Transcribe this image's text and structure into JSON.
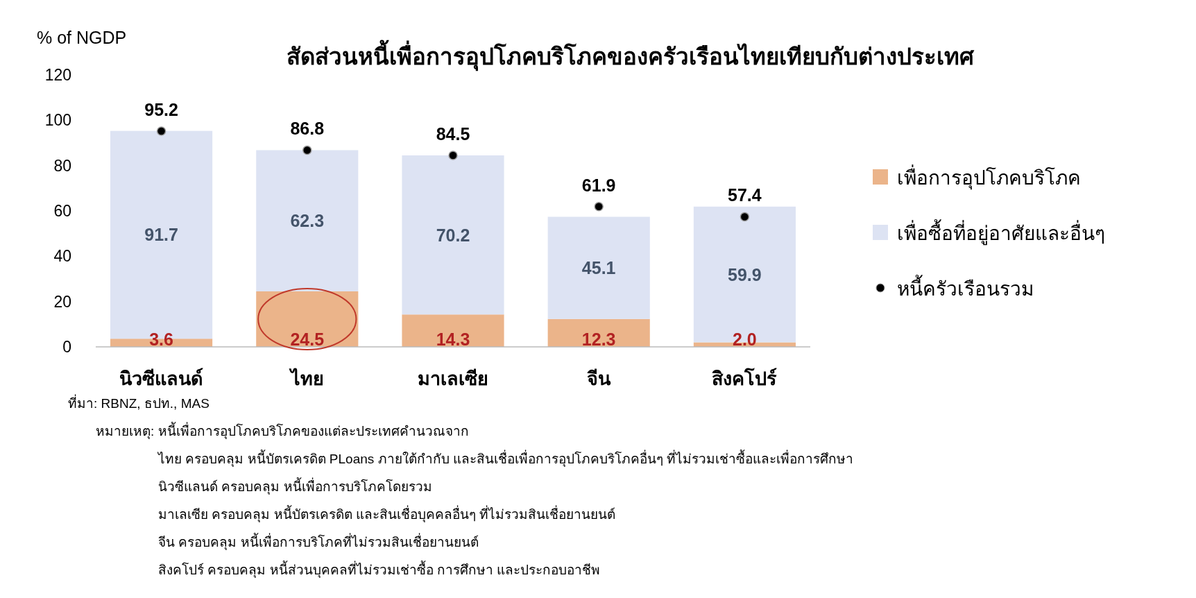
{
  "chart_data": {
    "type": "bar",
    "stacked": true,
    "title": "สัดส่วนหนี้เพื่อการอุปโภคบริโภคของครัวเรือนไทยเทียบกับต่างประเทศ",
    "ylabel": "% of NGDP",
    "categories": [
      "นิวซีแลนด์",
      "ไทย",
      "มาเลเซีย",
      "จีน",
      "สิงคโปร์"
    ],
    "series": [
      {
        "name": "เพื่อการอุปโภคบริโภค",
        "color": "#ebb48a",
        "values": [
          3.6,
          24.5,
          14.3,
          12.3,
          2.0
        ],
        "value_labels": [
          "3.6",
          "24.5",
          "14.3",
          "12.3",
          "2.0"
        ]
      },
      {
        "name": "เพื่อซื้อที่อยู่อาศัยและอื่นๆ",
        "color": "#dde3f3",
        "values": [
          91.7,
          62.3,
          70.2,
          45.1,
          59.9
        ],
        "value_labels": [
          "91.7",
          "62.3",
          "70.2",
          "45.1",
          "59.9"
        ]
      },
      {
        "name": "หนี้ครัวเรือนรวม",
        "type": "scatter",
        "color": "#000000",
        "values": [
          95.2,
          86.8,
          84.5,
          61.9,
          57.4
        ],
        "value_labels": [
          "95.2",
          "86.8",
          "84.5",
          "61.9",
          "57.4"
        ]
      }
    ],
    "ylim": [
      0,
      120
    ],
    "yticks": [
      0,
      20,
      40,
      60,
      80,
      100,
      120
    ],
    "legend": "right",
    "marker": "circle",
    "annotations": [
      "ที่มา: RBNZ, ธปท., MAS",
      "หมายเหตุ: หนี้เพื่อการอุปโภคบริโภคของแต่ละประเทศคำนวณจาก",
      "ไทย ครอบคลุม หนี้บัตรเครดิต PLoans ภายใต้กำกับ และสินเชื่อเพื่อการอุปโภคบริโภคอื่นๆ ที่ไม่รวมเช่าซื้อและเพื่อการศึกษา",
      "นิวซีแลนด์ ครอบคลุม หนี้เพื่อการบริโภคโดยรวม",
      "มาเลเซีย ครอบคลุม หนี้บัตรเครดิต และสินเชื่อบุคคลอื่นๆ ที่ไม่รวมสินเชื่อยานยนต์",
      "จีน ครอบคลุม หนี้เพื่อการบริโภคที่ไม่รวมสินเชื่อยานยนต์",
      "สิงคโปร์ ครอบคลุม หนี้ส่วนบุคคลที่ไม่รวมเช่าซื้อ การศึกษา และประกอบอาชีพ"
    ]
  }
}
